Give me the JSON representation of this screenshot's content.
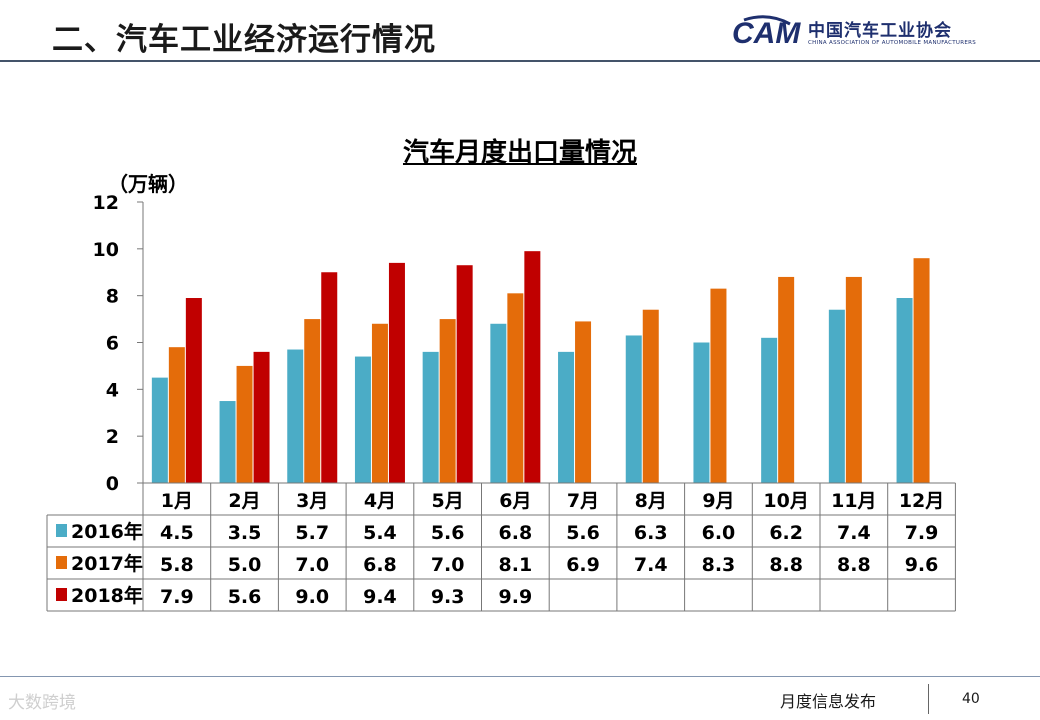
{
  "header": {
    "title": "二、汽车工业经济运行情况",
    "logo_mark": "CAM",
    "logo_cn": "中国汽车工业协会",
    "logo_en": "CHINA ASSOCIATION OF AUTOMOBILE MANUFACTURERS"
  },
  "chart_data": {
    "type": "bar",
    "title": "汽车月度出口量情况",
    "ylabel": "（万辆）",
    "ylim": [
      0,
      12
    ],
    "yticks": [
      0,
      2,
      4,
      6,
      8,
      10,
      12
    ],
    "categories": [
      "1月",
      "2月",
      "3月",
      "4月",
      "5月",
      "6月",
      "7月",
      "8月",
      "9月",
      "10月",
      "11月",
      "12月"
    ],
    "series": [
      {
        "name": "2016年",
        "color": "#4bacc6",
        "values": [
          4.5,
          3.5,
          5.7,
          5.4,
          5.6,
          6.8,
          5.6,
          6.3,
          6.0,
          6.2,
          7.4,
          7.9
        ],
        "labels": [
          "4.5",
          "3.5",
          "5.7",
          "5.4",
          "5.6",
          "6.8",
          "5.6",
          "6.3",
          "6.0",
          "6.2",
          "7.4",
          "7.9"
        ]
      },
      {
        "name": "2017年",
        "color": "#e46c0a",
        "values": [
          5.8,
          5.0,
          7.0,
          6.8,
          7.0,
          8.1,
          6.9,
          7.4,
          8.3,
          8.8,
          8.8,
          9.6
        ],
        "labels": [
          "5.8",
          "5.0",
          "7.0",
          "6.8",
          "7.0",
          "8.1",
          "6.9",
          "7.4",
          "8.3",
          "8.8",
          "8.8",
          "9.6"
        ]
      },
      {
        "name": "2018年",
        "color": "#c00000",
        "values": [
          7.9,
          5.6,
          9.0,
          9.4,
          9.3,
          9.9,
          null,
          null,
          null,
          null,
          null,
          null
        ],
        "labels": [
          "7.9",
          "5.6",
          "9.0",
          "9.4",
          "9.3",
          "9.9",
          "",
          "",
          "",
          "",
          "",
          ""
        ]
      }
    ]
  },
  "footer": {
    "label": "月度信息发布",
    "page": "40",
    "watermark": "大数跨境"
  }
}
